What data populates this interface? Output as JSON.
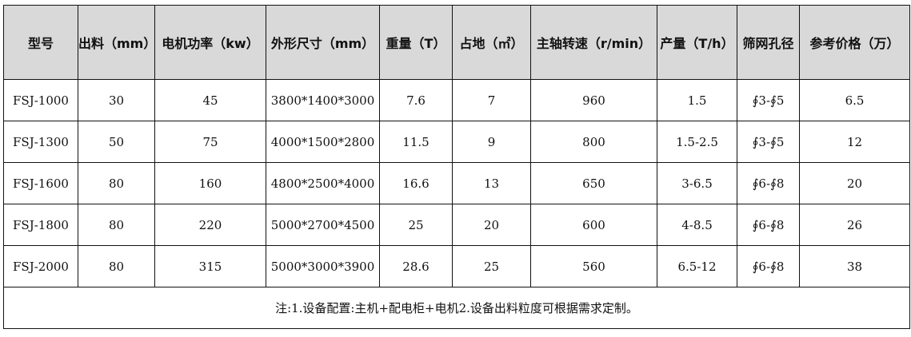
{
  "headers": [
    "型号",
    "出料（mm）",
    "电机功率（kw）",
    "外形尺寸（mm）",
    "重量（T）",
    "占地（㎡）",
    "主轴转速（r/min）",
    "产量（T/h）",
    "筛网孔径",
    "参考价格（万）"
  ],
  "rows": [
    [
      "FSJ-1000",
      "30",
      "45",
      "3800*1400*3000",
      "7.6",
      "7",
      "960",
      "1.5",
      "∮3-∮5",
      "6.5"
    ],
    [
      "FSJ-1300",
      "50",
      "75",
      "4000*1500*2800",
      "11.5",
      "9",
      "800",
      "1.5-2.5",
      "∮3-∮5",
      "12"
    ],
    [
      "FSJ-1600",
      "80",
      "160",
      "4800*2500*4000",
      "16.6",
      "13",
      "650",
      "3-6.5",
      "∮6-∮8",
      "20"
    ],
    [
      "FSJ-1800",
      "80",
      "220",
      "5000*2700*4500",
      "25",
      "20",
      "600",
      "4-8.5",
      "∮6-∮8",
      "26"
    ],
    [
      "FSJ-2000",
      "80",
      "315",
      "5000*3000*3900",
      "28.6",
      "25",
      "560",
      "6.5-12",
      "∮6-∮8",
      "38"
    ]
  ],
  "note": "注:1.设备配置:主机+配电柜+电机2.设备出料粒度可根据需求定制。",
  "colors": {
    "header_bg": "#d9d9d9",
    "border": "#111111"
  }
}
